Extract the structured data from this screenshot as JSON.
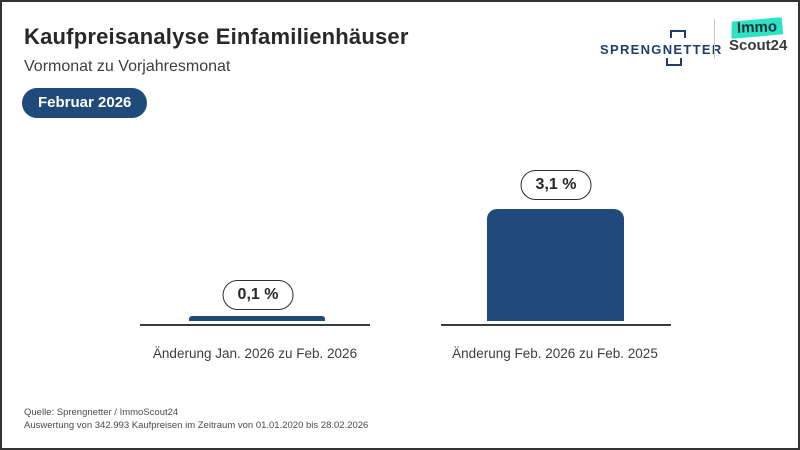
{
  "header": {
    "title": "Kaufpreisanalyse Einfamilienhäuser",
    "subtitle": "Vormonat zu Vorjahresmonat",
    "badge": "Februar 2026"
  },
  "logos": {
    "sprengnetter": "SPRENGNETTER",
    "immoscout_line1": "Immo",
    "immoscout_line2": "Scout24"
  },
  "chart_data": {
    "type": "bar",
    "title": "Kaufpreisanalyse Einfamilienhäuser",
    "subtitle": "Vormonat zu Vorjahresmonat",
    "period": "Februar 2026",
    "categories": [
      "Änderung Jan. 2026 zu Feb. 2026",
      "Änderung Feb. 2026 zu Feb. 2025"
    ],
    "values": [
      0.1,
      3.1
    ],
    "value_labels": [
      "0,1 %",
      "3,1 %"
    ],
    "unit": "%",
    "bar_color": "#1f4a7a",
    "baseline_color": "#3a3a3a",
    "legend": "none",
    "grid": false,
    "bars": [
      {
        "label": "0,1 %",
        "value": 0.1,
        "caption": "Änderung Jan. 2026 zu Feb. 2026"
      },
      {
        "label": "3,1 %",
        "value": 3.1,
        "caption": "Änderung Feb. 2026 zu Feb. 2025"
      }
    ]
  },
  "footer": {
    "line1": "Quelle: Sprengnetter / ImmoScout24",
    "line2": "Auswertung von 342.993 Kaufpreisen im Zeitraum von 01.01.2020 bis 28.02.2026"
  },
  "colors": {
    "accent_navy": "#1f4a7a",
    "logo_navy": "#1e3f6e",
    "immoscout_teal": "#2de3c3",
    "text_dark": "#282828",
    "text_gray": "#4a4a4a",
    "canvas_border": "#333333"
  }
}
